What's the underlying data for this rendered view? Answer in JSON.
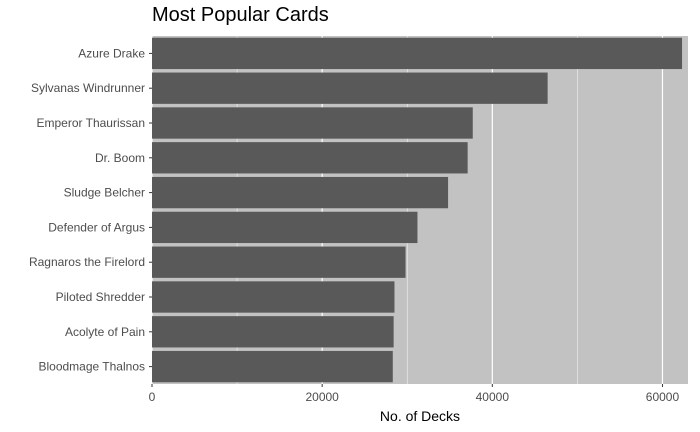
{
  "chart_data": {
    "type": "bar",
    "orientation": "horizontal",
    "title": "Most Popular Cards",
    "xlabel": "No. of Decks",
    "ylabel": "",
    "categories": [
      "Azure Drake",
      "Sylvanas Windrunner",
      "Emperor Thaurissan",
      "Dr. Boom",
      "Sludge Belcher",
      "Defender of Argus",
      "Ragnaros the Firelord",
      "Piloted Shredder",
      "Acolyte of Pain",
      "Bloodmage Thalnos"
    ],
    "values": [
      62300,
      46500,
      37700,
      37100,
      34800,
      31200,
      29800,
      28500,
      28400,
      28300
    ],
    "xlim": [
      0,
      63000
    ],
    "xticks": [
      0,
      20000,
      40000,
      60000
    ],
    "grid": true,
    "legend": "none",
    "colors": {
      "bar": "#595959",
      "panel": "#c2c2c2",
      "grid": "#ffffff",
      "text": "#4d4d4d"
    }
  }
}
